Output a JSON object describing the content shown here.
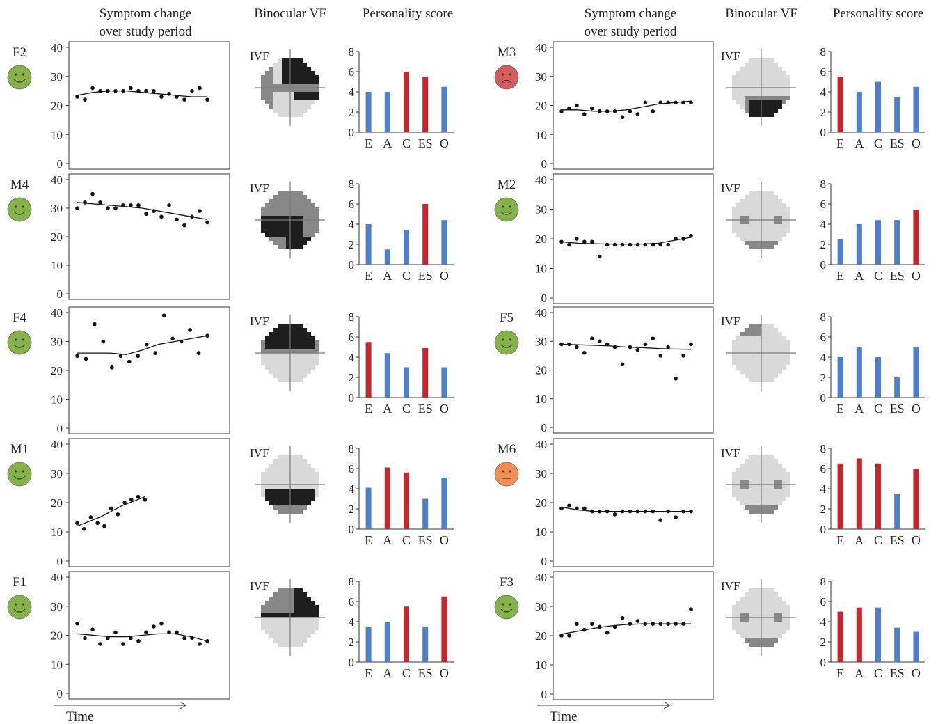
{
  "headers": {
    "symptom": [
      "Symptom change",
      "over study period"
    ],
    "vf": "Binocular VF",
    "personality": "Personality score"
  },
  "time_label": "Time",
  "ivf_label": "IVF",
  "colors": {
    "blue": "#4f7fc9",
    "red": "#c0282d",
    "face_happy": "#86b24a",
    "face_sad": "#d85c5c",
    "face_neutral": "#ef8f55"
  },
  "chart_data": [
    {
      "subject": "F2",
      "mood": "happy",
      "type": "scatter",
      "ylim": [
        0,
        40
      ],
      "yticks": [
        0,
        10,
        20,
        30,
        40
      ],
      "points": [
        23,
        22,
        26,
        25,
        25,
        25,
        25,
        26,
        25,
        25,
        25,
        23,
        24,
        23,
        22,
        25,
        26,
        22
      ],
      "trend": [
        23.5,
        24.5,
        25,
        25,
        24.5,
        24,
        23.5,
        23,
        23
      ],
      "vf_defect": "superior",
      "personality": {
        "categories": [
          "E",
          "A",
          "C",
          "ES",
          "O"
        ],
        "values": [
          4,
          4,
          6,
          5.5,
          4.5
        ],
        "highlight": [
          false,
          false,
          true,
          true,
          false
        ]
      }
    },
    {
      "subject": "M3",
      "mood": "sad",
      "type": "scatter",
      "ylim": [
        0,
        40
      ],
      "yticks": [
        0,
        10,
        20,
        30,
        40
      ],
      "points": [
        18,
        19,
        20,
        17,
        19,
        18,
        18,
        18,
        16,
        18,
        17,
        21,
        18,
        21,
        21,
        21,
        21,
        21
      ],
      "trend": [
        18.5,
        18.5,
        18,
        18,
        18.5,
        19.5,
        20.5,
        21,
        21.5
      ],
      "vf_defect": "inferior-mild",
      "personality": {
        "categories": [
          "E",
          "A",
          "C",
          "ES",
          "O"
        ],
        "values": [
          5.5,
          4,
          5,
          3.5,
          4.5
        ],
        "highlight": [
          true,
          false,
          false,
          false,
          false
        ]
      }
    },
    {
      "subject": "M4",
      "mood": "happy",
      "type": "scatter",
      "ylim": [
        0,
        40
      ],
      "yticks": [
        0,
        10,
        20,
        30,
        40
      ],
      "points": [
        30,
        32,
        35,
        32,
        30,
        30,
        31,
        31,
        31,
        28,
        29,
        27,
        31,
        26,
        24,
        27,
        29,
        25
      ],
      "trend": [
        32,
        31.5,
        31,
        30.5,
        30,
        29,
        28,
        27,
        26
      ],
      "vf_defect": "central-inferior",
      "personality": {
        "categories": [
          "E",
          "A",
          "C",
          "ES",
          "O"
        ],
        "values": [
          4,
          1.5,
          3.4,
          6,
          4.4
        ],
        "highlight": [
          false,
          false,
          false,
          true,
          false
        ]
      }
    },
    {
      "subject": "M2",
      "mood": "happy",
      "type": "scatter",
      "ylim": [
        0,
        40
      ],
      "yticks": [
        0,
        10,
        20,
        30,
        40
      ],
      "points": [
        19,
        18,
        20,
        19,
        19,
        14,
        18,
        18,
        18,
        18,
        18,
        18,
        18,
        18,
        18,
        20,
        20,
        21
      ],
      "trend": [
        19,
        18.5,
        18.3,
        18.2,
        18.2,
        18.2,
        18.5,
        19.5,
        20.5
      ],
      "vf_defect": "minimal",
      "personality": {
        "categories": [
          "E",
          "A",
          "C",
          "ES",
          "O"
        ],
        "values": [
          2.5,
          4,
          4.4,
          4.4,
          5.4
        ],
        "highlight": [
          false,
          false,
          false,
          false,
          true
        ]
      }
    },
    {
      "subject": "F4",
      "mood": "happy",
      "type": "scatter",
      "ylim": [
        0,
        40
      ],
      "yticks": [
        0,
        10,
        20,
        30,
        40
      ],
      "points": [
        25,
        24,
        36,
        30,
        21,
        25,
        23,
        25,
        29,
        26,
        39,
        31,
        30,
        34,
        26,
        32
      ],
      "trend": [
        26,
        26,
        26,
        25.5,
        27,
        29,
        30,
        31,
        32
      ],
      "vf_defect": "superior-dense",
      "personality": {
        "categories": [
          "E",
          "A",
          "C",
          "ES",
          "O"
        ],
        "values": [
          5.5,
          4.4,
          3,
          4.9,
          3
        ],
        "highlight": [
          true,
          false,
          false,
          true,
          false
        ]
      }
    },
    {
      "subject": "F5",
      "mood": "happy",
      "type": "scatter",
      "ylim": [
        0,
        40
      ],
      "yticks": [
        0,
        10,
        20,
        30,
        40
      ],
      "points": [
        29,
        29,
        28,
        26,
        31,
        30,
        29,
        28,
        22,
        28,
        27,
        29,
        31,
        25,
        28,
        17,
        25,
        29
      ],
      "trend": [
        29,
        28.8,
        28.6,
        28.4,
        28,
        27.8,
        27.5,
        27.3,
        27.2
      ],
      "vf_defect": "minimal-superior",
      "personality": {
        "categories": [
          "E",
          "A",
          "C",
          "ES",
          "O"
        ],
        "values": [
          4,
          5,
          4,
          2,
          5
        ],
        "highlight": [
          false,
          false,
          false,
          false,
          false
        ]
      }
    },
    {
      "subject": "M1",
      "mood": "happy",
      "type": "scatter",
      "ylim": [
        0,
        40
      ],
      "yticks": [
        0,
        10,
        20,
        30,
        40
      ],
      "points": [
        13,
        11,
        15,
        13,
        12,
        18,
        16,
        20,
        21,
        22,
        21
      ],
      "trend": [
        12,
        13.5,
        15,
        17,
        19,
        20.5,
        22
      ],
      "vf_defect": "inferior-dense",
      "personality": {
        "categories": [
          "E",
          "A",
          "C",
          "ES",
          "O"
        ],
        "values": [
          4.1,
          6.1,
          5.6,
          3,
          5.1
        ],
        "highlight": [
          false,
          true,
          true,
          false,
          false
        ]
      }
    },
    {
      "subject": "M6",
      "mood": "neutral",
      "type": "scatter",
      "ylim": [
        0,
        40
      ],
      "yticks": [
        0,
        10,
        20,
        30,
        40
      ],
      "points": [
        18,
        19,
        18,
        18,
        17,
        17,
        17,
        16,
        17,
        17,
        17,
        17,
        17,
        14,
        17,
        15,
        17,
        17
      ],
      "trend": [
        18.5,
        17.5,
        17,
        17,
        17,
        17,
        17,
        17,
        17
      ],
      "vf_defect": "minimal",
      "personality": {
        "categories": [
          "E",
          "A",
          "C",
          "ES",
          "O"
        ],
        "values": [
          6.5,
          7,
          6.5,
          3.5,
          6
        ],
        "highlight": [
          true,
          true,
          true,
          false,
          true
        ]
      }
    },
    {
      "subject": "F1",
      "mood": "happy",
      "type": "scatter",
      "ylim": [
        0,
        40
      ],
      "yticks": [
        0,
        10,
        20,
        30,
        40
      ],
      "points": [
        24,
        19,
        22,
        17,
        19,
        21,
        17,
        19,
        18,
        21,
        23,
        24,
        21,
        21,
        19,
        19,
        17,
        18
      ],
      "trend": [
        20.5,
        20,
        19.5,
        19.5,
        20,
        20.5,
        20.5,
        19.5,
        18
      ],
      "vf_defect": "superior-right",
      "personality": {
        "categories": [
          "E",
          "A",
          "C",
          "ES",
          "O"
        ],
        "values": [
          3.5,
          4,
          5.5,
          3.5,
          6.5
        ],
        "highlight": [
          false,
          false,
          true,
          false,
          true
        ]
      }
    },
    {
      "subject": "F3",
      "mood": "happy",
      "type": "scatter",
      "ylim": [
        0,
        40
      ],
      "yticks": [
        0,
        10,
        20,
        30,
        40
      ],
      "points": [
        20,
        20,
        24,
        22,
        24,
        23,
        21,
        23,
        26,
        24,
        25,
        24,
        24,
        24,
        24,
        24,
        24,
        29
      ],
      "trend": [
        20.5,
        21.5,
        22.5,
        23.3,
        23.8,
        24,
        24,
        24,
        24
      ],
      "vf_defect": "minimal",
      "personality": {
        "categories": [
          "E",
          "A",
          "C",
          "ES",
          "O"
        ],
        "values": [
          5,
          5.4,
          5.4,
          3.4,
          3
        ],
        "highlight": [
          true,
          true,
          false,
          false,
          false
        ]
      }
    }
  ]
}
